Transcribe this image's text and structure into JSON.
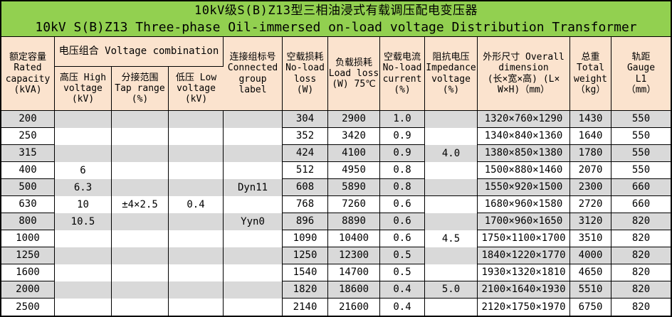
{
  "title": {
    "line_cn": "10kV级S(B)Z13型三相油浸式有载调压配电变压器",
    "line_en": "10kV S(B)Z13 Three-phase Oil-immersed on-load voltage Distribution Transformer"
  },
  "colors": {
    "title_bg": "#92D050",
    "header_bg": "#FBE3CE",
    "row_stripe": "#D9D9D9",
    "row_plain": "#FFFFFF",
    "border": "#000000"
  },
  "header": {
    "rated_capacity": "额定容量\nRated\ncapacity\n(kVA)",
    "voltage_combination": "电压组合 Voltage combination",
    "high_voltage": "高压 High\nvoltage\n(kV)",
    "tap_range": "分接范围\nTap range\n(%)",
    "low_voltage": "低压 Low\nvoltage\n(kV)",
    "connected_group": "连接组标号\nConnected\ngroup\nlabel",
    "no_load_loss": "空载损耗\nNo-load\nloss\n(W)",
    "load_loss": "负载损耗\nLoad loss\n(W) 75℃",
    "no_load_current": "空载电流\nNo-load\ncurrent\n(%)",
    "impedance_voltage": "阻抗电压\nImpedance\nvoltage\n(%)",
    "overall_dimension": "外形尺寸 Overall\ndimension\n(长×宽×高) (L×\nW×H)（mm）",
    "total_weight": "总重\nTotal\nweight\n（kg）",
    "gauge": "轨距\nGauge\nL1\n（mm）"
  },
  "rows": [
    {
      "capacity": "200",
      "hv": "",
      "tap": "",
      "lv": "",
      "group": "",
      "no_load_loss": "304",
      "load_loss": "2900",
      "no_load_current": "1.0",
      "impedance": "",
      "dimension": "1320×760×1290",
      "weight": "1430",
      "gauge": "550"
    },
    {
      "capacity": "250",
      "hv": "",
      "tap": "",
      "lv": "",
      "group": "",
      "no_load_loss": "352",
      "load_loss": "3420",
      "no_load_current": "0.9",
      "impedance": "",
      "dimension": "1340×840×1360",
      "weight": "1640",
      "gauge": "550"
    },
    {
      "capacity": "315",
      "hv": "",
      "tap": "",
      "lv": "",
      "group": "",
      "no_load_loss": "424",
      "load_loss": "4100",
      "no_load_current": "0.9",
      "impedance": "4.0",
      "dimension": "1380×850×1380",
      "weight": "1780",
      "gauge": "550"
    },
    {
      "capacity": "400",
      "hv": "6",
      "tap": "",
      "lv": "",
      "group": "",
      "no_load_loss": "512",
      "load_loss": "4950",
      "no_load_current": "0.8",
      "impedance": "",
      "dimension": "1500×880×1460",
      "weight": "2070",
      "gauge": "550"
    },
    {
      "capacity": "500",
      "hv": "6.3",
      "tap": "",
      "lv": "",
      "group": "Dyn11",
      "no_load_loss": "608",
      "load_loss": "5890",
      "no_load_current": "0.8",
      "impedance": "",
      "dimension": "1550×920×1500",
      "weight": "2300",
      "gauge": "660"
    },
    {
      "capacity": "630",
      "hv": "10",
      "tap": "±4×2.5",
      "lv": "0.4",
      "group": "",
      "no_load_loss": "768",
      "load_loss": "7260",
      "no_load_current": "0.6",
      "impedance": "",
      "dimension": "1680×960×1580",
      "weight": "2720",
      "gauge": "660"
    },
    {
      "capacity": "800",
      "hv": "10.5",
      "tap": "",
      "lv": "",
      "group": "Yyn0",
      "no_load_loss": "896",
      "load_loss": "8890",
      "no_load_current": "0.6",
      "impedance": "",
      "dimension": "1700×960×1650",
      "weight": "3120",
      "gauge": "820"
    },
    {
      "capacity": "1000",
      "hv": "",
      "tap": "",
      "lv": "",
      "group": "",
      "no_load_loss": "1090",
      "load_loss": "10400",
      "no_load_current": "0.6",
      "impedance": "4.5",
      "dimension": "1750×1100×1700",
      "weight": "3510",
      "gauge": "820"
    },
    {
      "capacity": "1250",
      "hv": "",
      "tap": "",
      "lv": "",
      "group": "",
      "no_load_loss": "1250",
      "load_loss": "12300",
      "no_load_current": "0.5",
      "impedance": "",
      "dimension": "1840×1220×1770",
      "weight": "4000",
      "gauge": "820"
    },
    {
      "capacity": "1600",
      "hv": "",
      "tap": "",
      "lv": "",
      "group": "",
      "no_load_loss": "1540",
      "load_loss": "14700",
      "no_load_current": "0.5",
      "impedance": "",
      "dimension": "1930×1320×1810",
      "weight": "4650",
      "gauge": "820"
    },
    {
      "capacity": "2000",
      "hv": "",
      "tap": "",
      "lv": "",
      "group": "",
      "no_load_loss": "1820",
      "load_loss": "18600",
      "no_load_current": "0.4",
      "impedance": "5.0",
      "dimension": "2100×1640×1930",
      "weight": "5510",
      "gauge": "820"
    },
    {
      "capacity": "2500",
      "hv": "",
      "tap": "",
      "lv": "",
      "group": "",
      "no_load_loss": "2140",
      "load_loss": "21600",
      "no_load_current": "0.4",
      "impedance": "",
      "dimension": "2120×1750×1970",
      "weight": "6750",
      "gauge": "820"
    }
  ]
}
